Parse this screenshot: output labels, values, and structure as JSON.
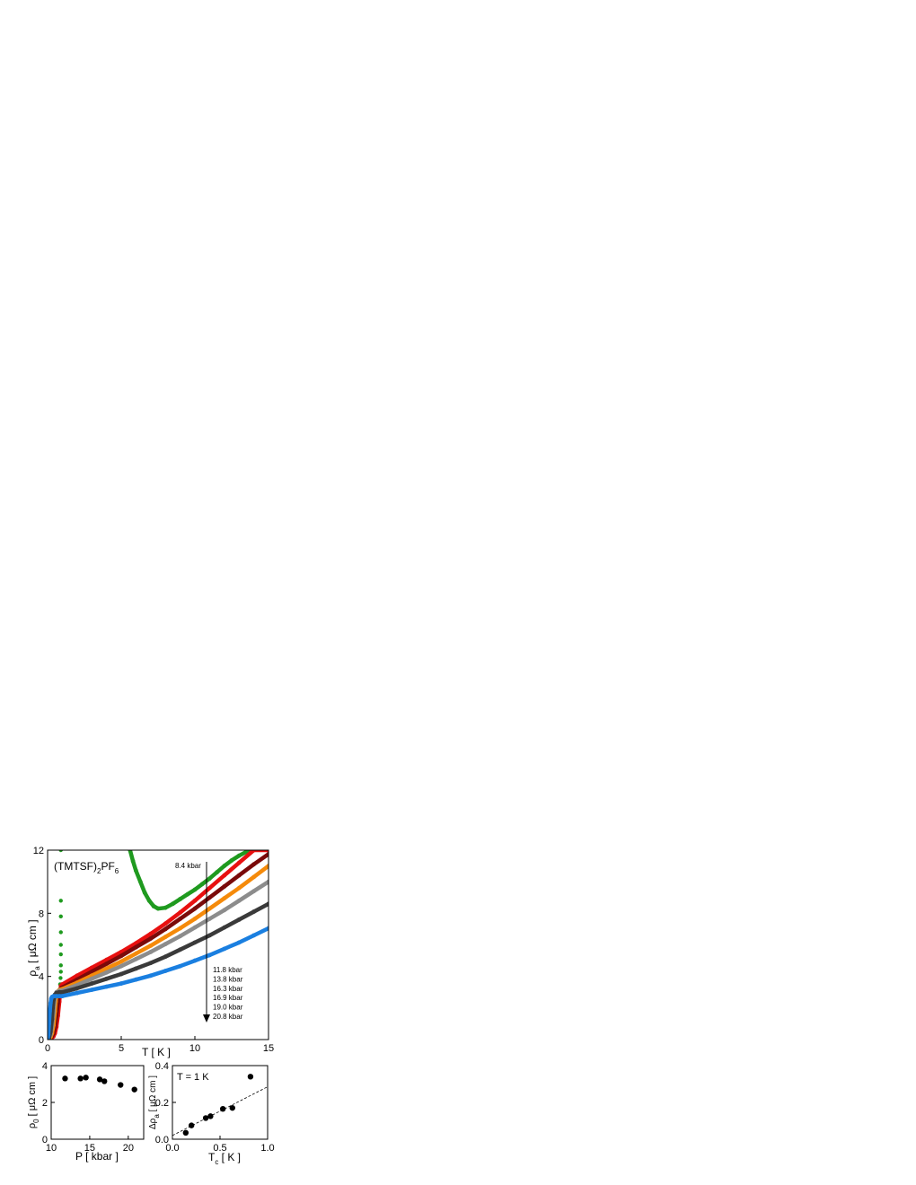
{
  "chart_data": [
    {
      "type": "scatter",
      "title": "(TMTSF)",
      "title_sub": "2",
      "title_suffix": "PF",
      "title_sub2": "6",
      "xlabel": "T [ K ]",
      "ylabel": "ρ",
      "ylabel_sub": "a",
      "ylabel_suffix": " [ μΩ cm ]",
      "xlim": [
        0,
        15
      ],
      "ylim": [
        0,
        12
      ],
      "xticks": [
        "0",
        "5",
        "10",
        "15"
      ],
      "yticks": [
        "0",
        "4",
        "8",
        "12"
      ],
      "arrow_label_top": "8.4 kbar",
      "legend_entries": [
        "11.8 kbar",
        "13.8 kbar",
        "16.3 kbar",
        "16.9 kbar",
        "19.0 kbar",
        "20.8 kbar"
      ],
      "series": [
        {
          "color": "#1f9a1f",
          "x": [
            5.6,
            5.8,
            6.0,
            6.3,
            6.6,
            6.9,
            7.2,
            7.5,
            8.0,
            8.5,
            9.0,
            9.5,
            10.0,
            10.5,
            11.0,
            11.5,
            12.0,
            12.5,
            13.0,
            13.5,
            13.9
          ],
          "y": [
            12.0,
            11.3,
            10.7,
            10.0,
            9.3,
            8.8,
            8.45,
            8.3,
            8.35,
            8.6,
            8.9,
            9.2,
            9.5,
            9.85,
            10.2,
            10.6,
            11.0,
            11.35,
            11.65,
            11.9,
            12.0
          ]
        },
        {
          "color": "#1f9a1f",
          "x": [
            0.9,
            0.9,
            0.9,
            0.9,
            0.9,
            0.9,
            0.9,
            0.9,
            0.88,
            0.85
          ],
          "y": [
            12.0,
            8.8,
            7.8,
            6.8,
            6.0,
            5.4,
            4.7,
            4.3,
            3.9,
            3.5
          ]
        },
        {
          "color": "#e81010",
          "x": [
            0.0,
            0.1,
            0.2,
            0.3,
            0.4,
            0.5,
            0.6,
            0.7,
            0.8,
            0.85,
            0.9,
            1.0,
            2.0,
            3.0,
            4.0,
            5.0,
            6.0,
            7.0,
            8.0,
            9.0,
            10.0,
            11.0,
            12.0,
            13.0,
            14.0,
            15.0
          ],
          "y": [
            0.0,
            0.0,
            0.05,
            0.1,
            0.2,
            0.4,
            0.8,
            1.5,
            2.4,
            3.0,
            3.4,
            3.5,
            4.05,
            4.55,
            5.05,
            5.55,
            6.1,
            6.7,
            7.35,
            8.05,
            8.8,
            9.6,
            10.4,
            11.2,
            12.0,
            12.0
          ]
        },
        {
          "color": "#7a0a0a",
          "x": [
            0.0,
            0.1,
            0.2,
            0.3,
            0.4,
            0.5,
            0.6,
            0.7,
            0.75,
            0.8,
            0.9,
            1.0,
            2.0,
            3.0,
            4.0,
            5.0,
            6.0,
            7.0,
            8.0,
            9.0,
            10.0,
            11.0,
            12.0,
            13.0,
            14.0,
            15.0
          ],
          "y": [
            0.0,
            0.05,
            0.1,
            0.2,
            0.4,
            0.8,
            1.5,
            2.3,
            2.8,
            3.1,
            3.25,
            3.3,
            3.8,
            4.3,
            4.8,
            5.3,
            5.85,
            6.4,
            7.0,
            7.65,
            8.3,
            9.0,
            9.7,
            10.4,
            11.1,
            11.75
          ]
        },
        {
          "color": "#f58a0a",
          "x": [
            0.0,
            0.1,
            0.2,
            0.3,
            0.4,
            0.5,
            0.55,
            0.6,
            0.7,
            0.8,
            1.0,
            2.0,
            3.0,
            4.0,
            5.0,
            6.0,
            7.0,
            8.0,
            9.0,
            10.0,
            11.0,
            12.0,
            13.0,
            14.0,
            15.0
          ],
          "y": [
            0.0,
            0.05,
            0.15,
            0.4,
            0.9,
            1.8,
            2.4,
            2.8,
            3.05,
            3.15,
            3.2,
            3.6,
            4.05,
            4.5,
            4.95,
            5.45,
            5.95,
            6.5,
            7.05,
            7.65,
            8.3,
            8.95,
            9.6,
            10.3,
            11.0
          ]
        },
        {
          "color": "#8c8c8c",
          "x": [
            0.0,
            0.1,
            0.2,
            0.3,
            0.4,
            0.45,
            0.5,
            0.6,
            0.8,
            1.0,
            2.0,
            3.0,
            4.0,
            5.0,
            6.0,
            7.0,
            8.0,
            9.0,
            10.0,
            11.0,
            12.0,
            13.0,
            14.0,
            15.0
          ],
          "y": [
            0.0,
            0.1,
            0.3,
            0.8,
            1.7,
            2.3,
            2.7,
            3.0,
            3.1,
            3.1,
            3.45,
            3.85,
            4.25,
            4.65,
            5.1,
            5.55,
            6.05,
            6.55,
            7.1,
            7.65,
            8.2,
            8.8,
            9.4,
            10.0
          ]
        },
        {
          "color": "#3a3a3a",
          "x": [
            0.0,
            0.1,
            0.2,
            0.3,
            0.35,
            0.4,
            0.5,
            0.6,
            0.8,
            1.0,
            2.0,
            3.0,
            4.0,
            5.0,
            6.0,
            7.0,
            8.0,
            9.0,
            10.0,
            11.0,
            12.0,
            13.0,
            14.0,
            15.0
          ],
          "y": [
            0.0,
            0.1,
            0.5,
            1.3,
            2.0,
            2.5,
            2.85,
            2.95,
            3.0,
            3.0,
            3.25,
            3.55,
            3.85,
            4.15,
            4.5,
            4.85,
            5.25,
            5.7,
            6.15,
            6.6,
            7.1,
            7.6,
            8.1,
            8.6
          ]
        },
        {
          "color": "#1a7fe0",
          "x": [
            0.0,
            0.05,
            0.1,
            0.15,
            0.2,
            0.25,
            0.3,
            0.4,
            0.6,
            0.8,
            1.0,
            2.0,
            3.0,
            4.0,
            5.0,
            6.0,
            7.0,
            8.0,
            9.0,
            10.0,
            11.0,
            12.0,
            13.0,
            14.0,
            15.0
          ],
          "y": [
            0.0,
            0.3,
            1.0,
            1.8,
            2.3,
            2.6,
            2.7,
            2.75,
            2.75,
            2.75,
            2.75,
            2.95,
            3.15,
            3.35,
            3.55,
            3.8,
            4.05,
            4.35,
            4.65,
            5.0,
            5.35,
            5.75,
            6.15,
            6.6,
            7.05
          ]
        }
      ]
    },
    {
      "type": "scatter",
      "xlabel": "P [ kbar ]",
      "ylabel": "ρ",
      "ylabel_sub": "0",
      "ylabel_suffix": " [ μΩ cm ]",
      "xlim": [
        10,
        22
      ],
      "ylim": [
        0,
        4
      ],
      "xticks": [
        "10",
        "15",
        "20"
      ],
      "yticks": [
        "0",
        "2",
        "4"
      ],
      "x": [
        11.8,
        13.8,
        14.5,
        16.3,
        16.9,
        19.0,
        20.8
      ],
      "y": [
        3.3,
        3.3,
        3.35,
        3.25,
        3.15,
        2.95,
        2.7
      ]
    },
    {
      "type": "scatter",
      "annotation": "T = 1 K",
      "xlabel": "T",
      "xlabel_sub": "c",
      "xlabel_suffix": " [ K ]",
      "ylabel": "Δρ",
      "ylabel_sub": "a",
      "ylabel_suffix": " [ μΩ cm ]",
      "xlim": [
        0.0,
        1.0
      ],
      "ylim": [
        0.0,
        0.4
      ],
      "xticks": [
        "0.0",
        "0.5",
        "1.0"
      ],
      "yticks": [
        "0.0",
        "0.2",
        "0.4"
      ],
      "x": [
        0.14,
        0.2,
        0.35,
        0.4,
        0.53,
        0.63,
        0.82
      ],
      "y": [
        0.035,
        0.075,
        0.115,
        0.125,
        0.165,
        0.17,
        0.34
      ],
      "fit_line": {
        "x": [
          0.0,
          1.0
        ],
        "y": [
          0.02,
          0.285
        ]
      }
    }
  ]
}
